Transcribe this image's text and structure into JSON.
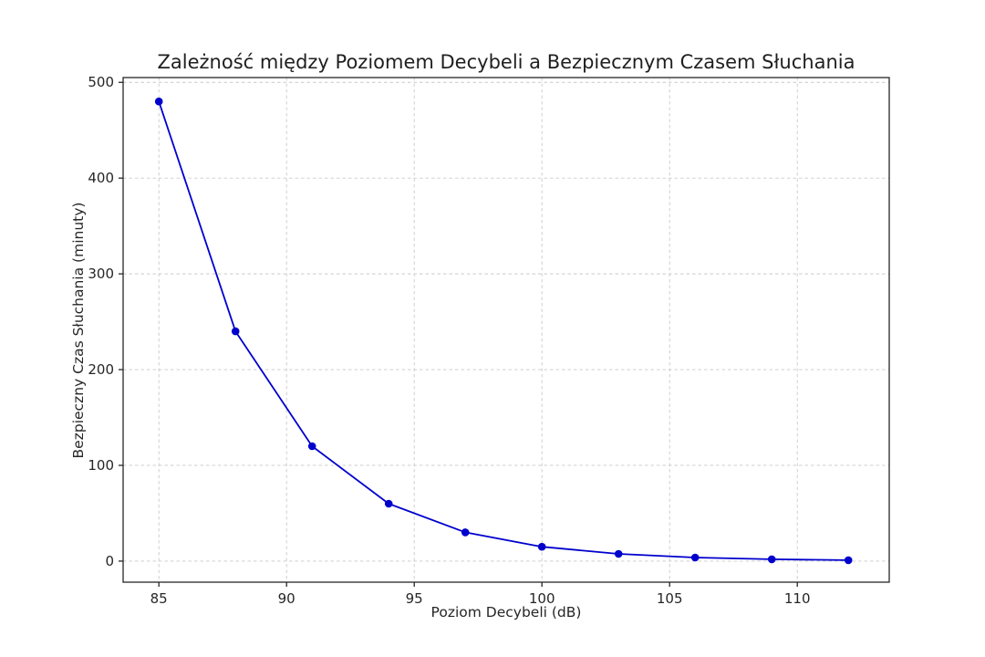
{
  "chart_data": {
    "type": "line",
    "title": "Zależność między Poziomem Decybeli a Bezpiecznym Czasem Słuchania",
    "xlabel": "Poziom Decybeli (dB)",
    "ylabel": "Bezpieczny Czas Słuchania (minuty)",
    "x": [
      85,
      88,
      91,
      94,
      97,
      100,
      103,
      106,
      109,
      112
    ],
    "y": [
      480,
      240,
      120,
      60,
      30,
      15,
      7.5,
      3.75,
      1.88,
      0.94
    ],
    "x_ticks": [
      85,
      90,
      95,
      100,
      105,
      110
    ],
    "y_ticks": [
      0,
      100,
      200,
      300,
      400,
      500
    ],
    "xlim": [
      83.6,
      113.6
    ],
    "ylim": [
      -22,
      505
    ],
    "grid": true,
    "grid_style": "dashed",
    "legend": "none",
    "line_color": "#0000cd",
    "marker_color": "#0000cd",
    "marker": "circle",
    "grid_color": "#c9c9c9",
    "axis_color": "#262626",
    "background_color": "#ffffff"
  }
}
